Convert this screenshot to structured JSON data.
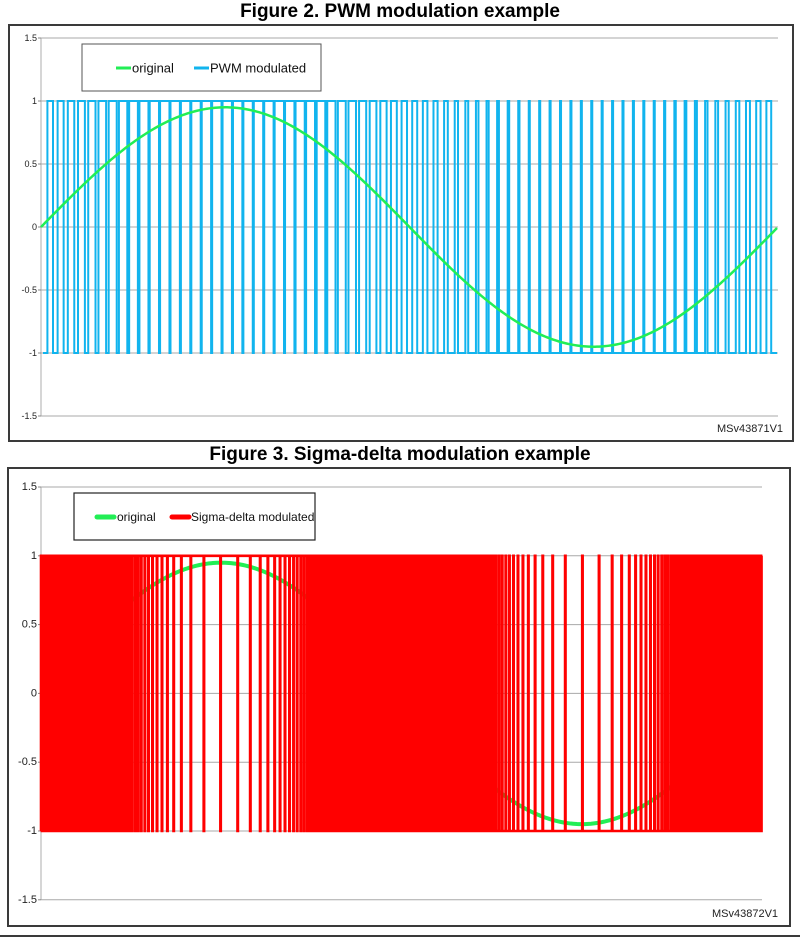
{
  "figures": [
    {
      "title": "Figure 2. PWM modulation example",
      "id_label": "MSv43871V1",
      "legend": {
        "original": "original",
        "modulated": "PWM modulated"
      }
    },
    {
      "title": "Figure 3. Sigma-delta modulation example",
      "id_label": "MSv43872V1",
      "legend": {
        "original": "original",
        "modulated": "Sigma-delta modulated"
      }
    }
  ],
  "colors": {
    "original": "#22ee55",
    "pwm": "#11b4ee",
    "sigma_delta": "#ff0000",
    "grid": "#a8a8a8",
    "frame": "#3a3a3a"
  },
  "chart_data": [
    {
      "type": "line",
      "title": "Figure 2. PWM modulation example",
      "xlabel": "",
      "ylabel": "",
      "ylim": [
        -1.5,
        1.5
      ],
      "yticks": [
        "1.5",
        "1",
        "0.5",
        "0",
        "-0.5",
        "-1",
        "-1.5"
      ],
      "xticks": [],
      "grid": true,
      "legend_position": "top-left inside",
      "series": [
        {
          "name": "original",
          "description": "one period of a sine wave, amplitude ~0.95, starting at 0",
          "amplitude": 0.95,
          "periods": 1
        },
        {
          "name": "PWM modulated",
          "description": "square wave switching between +1 and -1, ~70 carrier periods, duty cycle follows the sine",
          "levels": [
            1,
            -1
          ],
          "carrier_periods": 70
        }
      ],
      "annotation": "MSv43871V1"
    },
    {
      "type": "line",
      "title": "Figure 3. Sigma-delta modulation example",
      "xlabel": "",
      "ylabel": "",
      "ylim": [
        -1.5,
        1.5
      ],
      "yticks": [
        "1.5",
        "1",
        "0.5",
        "0",
        "-0.5",
        "-1",
        "-1.5"
      ],
      "xticks": [],
      "grid": true,
      "legend_position": "top-left inside",
      "series": [
        {
          "name": "original",
          "description": "one period of a sine wave, amplitude ~0.95, starting at 0",
          "amplitude": 0.95,
          "periods": 1
        },
        {
          "name": "Sigma-delta modulated",
          "description": "1-bit pulse density stream between +1 and -1; dense near zero crossings, sparse pulses near the peaks",
          "levels": [
            1,
            -1
          ],
          "samples": 1600
        }
      ],
      "annotation": "MSv43872V1"
    }
  ]
}
